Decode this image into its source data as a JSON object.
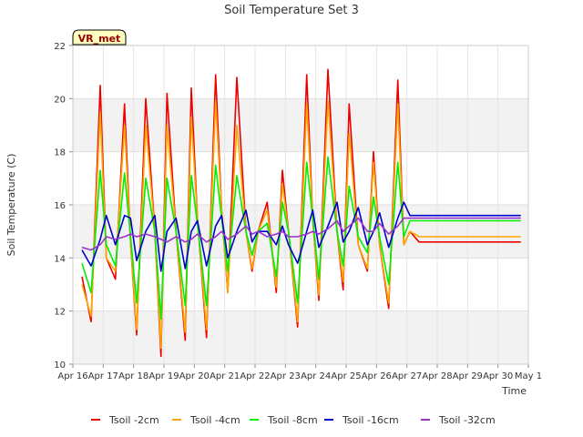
{
  "chart_data": {
    "type": "line",
    "title": "Soil Temperature Set 3",
    "xlabel": "Time",
    "ylabel": "Soil Temperature (C)",
    "badge": "VR_met",
    "ylim": [
      10,
      22
    ],
    "yticks": [
      10,
      12,
      14,
      16,
      18,
      20,
      22
    ],
    "xlim": [
      0,
      15
    ],
    "xticks": [
      0,
      1,
      2,
      3,
      4,
      5,
      6,
      7,
      8,
      9,
      10,
      11,
      12,
      13,
      14,
      15
    ],
    "xticklabels": [
      "Apr 16",
      "Apr 17",
      "Apr 18",
      "Apr 19",
      "Apr 20",
      "Apr 21",
      "Apr 22",
      "Apr 23",
      "Apr 24",
      "Apr 25",
      "Apr 26",
      "Apr 27",
      "Apr 28",
      "Apr 29",
      "Apr 30",
      "May 1"
    ],
    "grid": true,
    "legend_position": "bottom",
    "x": [
      0.3,
      0.6,
      0.9,
      1.1,
      1.4,
      1.7,
      1.9,
      2.1,
      2.4,
      2.7,
      2.9,
      3.1,
      3.4,
      3.7,
      3.9,
      4.1,
      4.4,
      4.7,
      4.9,
      5.1,
      5.4,
      5.7,
      5.9,
      6.1,
      6.4,
      6.7,
      6.9,
      7.1,
      7.4,
      7.7,
      7.9,
      8.1,
      8.4,
      8.7,
      8.9,
      9.1,
      9.4,
      9.7,
      9.9,
      10.1,
      10.4,
      10.7,
      10.9,
      11.1,
      11.4,
      11.7,
      11.9,
      12.1,
      12.4,
      12.7,
      12.9,
      13.1,
      13.4,
      13.7,
      13.9,
      14.1,
      14.4,
      14.75
    ],
    "series": [
      {
        "name": "Tsoil -2cm",
        "color": "#ee0000",
        "values": [
          13.3,
          11.6,
          20.5,
          14.0,
          13.2,
          19.8,
          14.6,
          11.1,
          20.0,
          15.0,
          10.3,
          20.2,
          15.0,
          10.9,
          20.4,
          15.5,
          11.0,
          20.9,
          15.8,
          12.7,
          20.8,
          15.0,
          13.5,
          15.0,
          16.1,
          12.7,
          17.3,
          15.0,
          11.4,
          20.9,
          15.5,
          12.4,
          21.1,
          15.0,
          12.8,
          19.8,
          14.5,
          13.5,
          18.0,
          14.5,
          12.1,
          20.7,
          14.5,
          15.0,
          14.6,
          14.6,
          14.6,
          14.6,
          14.6,
          14.6,
          14.6,
          14.6,
          14.6,
          14.6,
          14.6,
          14.6,
          14.6,
          14.6
        ]
      },
      {
        "name": "Tsoil -4cm",
        "color": "#ffa500",
        "values": [
          13.0,
          11.8,
          19.5,
          14.0,
          13.5,
          19.0,
          14.6,
          11.3,
          19.0,
          15.0,
          10.6,
          19.0,
          15.0,
          11.2,
          19.3,
          15.5,
          11.3,
          19.9,
          15.8,
          12.7,
          19.0,
          15.0,
          13.6,
          15.0,
          15.8,
          12.9,
          16.8,
          15.0,
          11.6,
          19.8,
          15.5,
          12.6,
          19.9,
          15.0,
          13.1,
          18.7,
          14.5,
          13.6,
          17.6,
          14.5,
          12.3,
          19.8,
          14.5,
          15.0,
          14.8,
          14.8,
          14.8,
          14.8,
          14.8,
          14.8,
          14.8,
          14.8,
          14.8,
          14.8,
          14.8,
          14.8,
          14.8,
          14.8
        ]
      },
      {
        "name": "Tsoil -8cm",
        "color": "#00ee00",
        "values": [
          13.8,
          12.7,
          17.3,
          14.5,
          13.7,
          17.2,
          14.8,
          12.3,
          17.0,
          15.0,
          11.7,
          17.0,
          15.0,
          12.2,
          17.1,
          15.3,
          12.2,
          17.5,
          15.5,
          13.5,
          17.1,
          15.0,
          14.1,
          15.0,
          15.3,
          13.3,
          16.1,
          15.0,
          12.3,
          17.6,
          15.5,
          13.2,
          17.8,
          15.0,
          13.7,
          16.7,
          14.8,
          14.2,
          16.3,
          14.8,
          13.0,
          17.6,
          14.8,
          15.4,
          15.4,
          15.4,
          15.4,
          15.4,
          15.4,
          15.4,
          15.4,
          15.4,
          15.4,
          15.4,
          15.4,
          15.4,
          15.4,
          15.4
        ]
      },
      {
        "name": "Tsoil -16cm",
        "color": "#0000cc",
        "values": [
          14.3,
          13.7,
          14.7,
          15.6,
          14.5,
          15.6,
          15.5,
          13.9,
          15.0,
          15.6,
          13.5,
          15.0,
          15.5,
          13.6,
          15.0,
          15.4,
          13.7,
          15.2,
          15.6,
          14.0,
          15.0,
          15.8,
          14.6,
          15.0,
          15.0,
          14.5,
          15.2,
          14.5,
          13.8,
          15.0,
          15.8,
          14.4,
          15.2,
          16.1,
          14.6,
          15.0,
          15.9,
          14.5,
          15.0,
          15.7,
          14.4,
          15.5,
          16.1,
          15.6,
          15.6,
          15.6,
          15.6,
          15.6,
          15.6,
          15.6,
          15.6,
          15.6,
          15.6,
          15.6,
          15.6,
          15.6,
          15.6,
          15.6
        ]
      },
      {
        "name": "Tsoil -32cm",
        "color": "#9933cc",
        "values": [
          14.4,
          14.3,
          14.5,
          14.8,
          14.7,
          14.8,
          14.9,
          14.8,
          14.9,
          14.8,
          14.7,
          14.6,
          14.8,
          14.6,
          14.7,
          14.9,
          14.6,
          14.8,
          15.0,
          14.7,
          14.9,
          15.2,
          14.9,
          15.0,
          14.8,
          14.9,
          15.0,
          14.8,
          14.8,
          14.9,
          15.0,
          14.9,
          15.1,
          15.4,
          15.0,
          15.2,
          15.5,
          15.0,
          15.0,
          15.3,
          14.9,
          15.2,
          15.5,
          15.5,
          15.5,
          15.5,
          15.5,
          15.5,
          15.5,
          15.5,
          15.5,
          15.5,
          15.5,
          15.5,
          15.5,
          15.5,
          15.5,
          15.5
        ]
      }
    ]
  }
}
